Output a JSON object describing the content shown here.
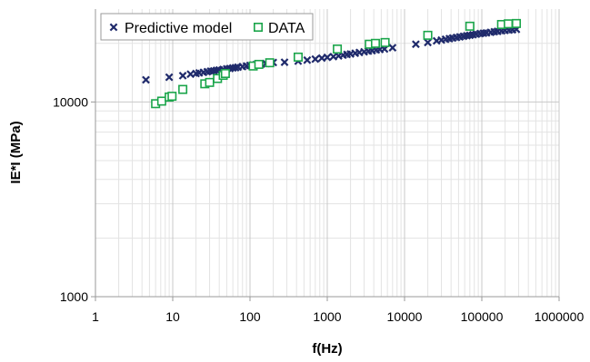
{
  "chart_data": {
    "type": "scatter",
    "title": "",
    "xlabel": "f(Hz)",
    "ylabel": "IE*I (MPa)",
    "x_scale": "log",
    "y_scale": "log",
    "xlim": [
      1,
      1000000
    ],
    "ylim": [
      1000,
      30000
    ],
    "x_tick_labels": [
      "1",
      "10",
      "100",
      "1000",
      "10000",
      "100000",
      "1000000"
    ],
    "y_tick_labels": [
      "1000",
      "10000"
    ],
    "grid": true,
    "legend_position": "top",
    "colors": {
      "Predictive model": "#1f2a6b",
      "DATA": "#1aa54a"
    },
    "series": [
      {
        "name": "Predictive model",
        "marker": "x",
        "points": [
          [
            4.5,
            13000
          ],
          [
            9,
            13400
          ],
          [
            13.5,
            13650
          ],
          [
            17,
            13900
          ],
          [
            20,
            14000
          ],
          [
            22,
            14100
          ],
          [
            25,
            14200
          ],
          [
            28,
            14300
          ],
          [
            31,
            14400
          ],
          [
            34,
            14450
          ],
          [
            37,
            14550
          ],
          [
            40,
            14600
          ],
          [
            45,
            14700
          ],
          [
            50,
            14800
          ],
          [
            55,
            14850
          ],
          [
            60,
            14950
          ],
          [
            65,
            15000
          ],
          [
            70,
            15100
          ],
          [
            80,
            15200
          ],
          [
            90,
            15300
          ],
          [
            100,
            15400
          ],
          [
            110,
            15450
          ],
          [
            120,
            15550
          ],
          [
            140,
            15650
          ],
          [
            160,
            15750
          ],
          [
            180,
            15850
          ],
          [
            200,
            15950
          ],
          [
            280,
            16000
          ],
          [
            420,
            16200
          ],
          [
            550,
            16400
          ],
          [
            700,
            16600
          ],
          [
            850,
            16800
          ],
          [
            1000,
            16950
          ],
          [
            1200,
            17100
          ],
          [
            1400,
            17250
          ],
          [
            1600,
            17400
          ],
          [
            1800,
            17550
          ],
          [
            2000,
            17650
          ],
          [
            2300,
            17800
          ],
          [
            2600,
            17950
          ],
          [
            3000,
            18100
          ],
          [
            3400,
            18250
          ],
          [
            3800,
            18350
          ],
          [
            4300,
            18500
          ],
          [
            4800,
            18600
          ],
          [
            5500,
            18700
          ],
          [
            7000,
            19000
          ],
          [
            14000,
            19800
          ],
          [
            20000,
            20200
          ],
          [
            26000,
            20600
          ],
          [
            30000,
            20800
          ],
          [
            34000,
            21000
          ],
          [
            38000,
            21150
          ],
          [
            42000,
            21300
          ],
          [
            47000,
            21450
          ],
          [
            52000,
            21600
          ],
          [
            58000,
            21750
          ],
          [
            64000,
            21900
          ],
          [
            70000,
            22000
          ],
          [
            77000,
            22150
          ],
          [
            85000,
            22300
          ],
          [
            95000,
            22450
          ],
          [
            105000,
            22550
          ],
          [
            115000,
            22650
          ],
          [
            130000,
            22800
          ],
          [
            145000,
            22950
          ],
          [
            160000,
            23050
          ],
          [
            180000,
            23200
          ],
          [
            200000,
            23300
          ],
          [
            225000,
            23400
          ],
          [
            250000,
            23500
          ],
          [
            280000,
            23600
          ]
        ]
      },
      {
        "name": "DATA",
        "marker": "square",
        "points": [
          [
            6,
            9800
          ],
          [
            7.2,
            10100
          ],
          [
            9,
            10600
          ],
          [
            9.8,
            10700
          ],
          [
            13.5,
            11600
          ],
          [
            26,
            12400
          ],
          [
            30,
            12600
          ],
          [
            38,
            13200
          ],
          [
            45,
            13700
          ],
          [
            48,
            14000
          ],
          [
            110,
            15300
          ],
          [
            130,
            15600
          ],
          [
            180,
            15900
          ],
          [
            420,
            17000
          ],
          [
            1350,
            18700
          ],
          [
            3500,
            19800
          ],
          [
            4200,
            20000
          ],
          [
            5600,
            20200
          ],
          [
            20000,
            22000
          ],
          [
            70000,
            24500
          ],
          [
            180000,
            25000
          ],
          [
            220000,
            25200
          ],
          [
            280000,
            25300
          ]
        ]
      }
    ]
  }
}
